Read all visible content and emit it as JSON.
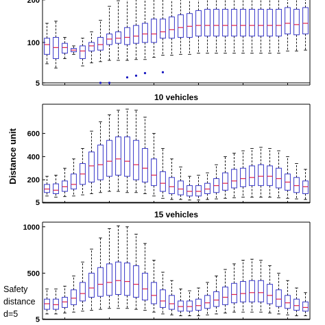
{
  "figure": {
    "ylabel": "Distance unit",
    "safety_note": [
      "Safety",
      "distance",
      "d=5"
    ]
  },
  "colors": {
    "box": "#3535c8",
    "median": "#e0204a",
    "outlier": "#1818c0",
    "axis": "#000000",
    "whisker": "#000000"
  },
  "chart_data": [
    {
      "type": "box",
      "title": "",
      "ylim": [
        0,
        232
      ],
      "yticks": [
        5,
        100,
        200
      ],
      "safety_line": 5,
      "n": 30,
      "boxes": [
        {
          "min": 50,
          "q1": 72,
          "med": 95,
          "q3": 110,
          "max": 145,
          "outliers": []
        },
        {
          "min": 40,
          "q1": 62,
          "med": 88,
          "q3": 112,
          "max": 150,
          "outliers": []
        },
        {
          "min": 62,
          "q1": 75,
          "med": 88,
          "q3": 98,
          "max": 112,
          "outliers": []
        },
        {
          "min": 72,
          "q1": 78,
          "med": 82,
          "q3": 86,
          "max": 92,
          "outliers": []
        },
        {
          "min": 45,
          "q1": 62,
          "med": 80,
          "q3": 92,
          "max": 110,
          "outliers": []
        },
        {
          "min": 52,
          "q1": 80,
          "med": 92,
          "q3": 100,
          "max": 125,
          "outliers": []
        },
        {
          "min": 55,
          "q1": 82,
          "med": 95,
          "q3": 112,
          "max": 152,
          "outliers": [
            5
          ]
        },
        {
          "min": 58,
          "q1": 95,
          "med": 108,
          "q3": 120,
          "max": 185,
          "outliers": [
            5
          ]
        },
        {
          "min": 58,
          "q1": 98,
          "med": 110,
          "q3": 125,
          "max": 198,
          "outliers": []
        },
        {
          "min": 58,
          "q1": 95,
          "med": 112,
          "q3": 135,
          "max": 205,
          "outliers": [
            18
          ]
        },
        {
          "min": 60,
          "q1": 98,
          "med": 115,
          "q3": 140,
          "max": 210,
          "outliers": [
            22
          ]
        },
        {
          "min": 60,
          "q1": 100,
          "med": 120,
          "q3": 145,
          "max": 212,
          "outliers": [
            28
          ]
        },
        {
          "min": 65,
          "q1": 100,
          "med": 120,
          "q3": 155,
          "max": 222,
          "outliers": [
            215
          ]
        },
        {
          "min": 70,
          "q1": 110,
          "med": 125,
          "q3": 155,
          "max": 225,
          "outliers": [
            30
          ]
        },
        {
          "min": 70,
          "q1": 110,
          "med": 130,
          "q3": 160,
          "max": 228,
          "outliers": []
        },
        {
          "min": 72,
          "q1": 112,
          "med": 135,
          "q3": 165,
          "max": 230,
          "outliers": []
        },
        {
          "min": 72,
          "q1": 112,
          "med": 138,
          "q3": 168,
          "max": 232,
          "outliers": []
        },
        {
          "min": 75,
          "q1": 115,
          "med": 140,
          "q3": 175,
          "max": 232,
          "outliers": []
        },
        {
          "min": 75,
          "q1": 115,
          "med": 140,
          "q3": 178,
          "max": 232,
          "outliers": []
        },
        {
          "min": 75,
          "q1": 115,
          "med": 140,
          "q3": 178,
          "max": 232,
          "outliers": []
        },
        {
          "min": 75,
          "q1": 115,
          "med": 140,
          "q3": 178,
          "max": 232,
          "outliers": []
        },
        {
          "min": 75,
          "q1": 115,
          "med": 140,
          "q3": 178,
          "max": 232,
          "outliers": []
        },
        {
          "min": 75,
          "q1": 115,
          "med": 140,
          "q3": 178,
          "max": 232,
          "outliers": []
        },
        {
          "min": 75,
          "q1": 115,
          "med": 140,
          "q3": 178,
          "max": 232,
          "outliers": []
        },
        {
          "min": 75,
          "q1": 115,
          "med": 140,
          "q3": 178,
          "max": 232,
          "outliers": []
        },
        {
          "min": 75,
          "q1": 115,
          "med": 140,
          "q3": 178,
          "max": 232,
          "outliers": []
        },
        {
          "min": 75,
          "q1": 115,
          "med": 140,
          "q3": 178,
          "max": 232,
          "outliers": []
        },
        {
          "min": 80,
          "q1": 120,
          "med": 145,
          "q3": 182,
          "max": 232,
          "outliers": []
        },
        {
          "min": 80,
          "q1": 118,
          "med": 142,
          "q3": 178,
          "max": 232,
          "outliers": []
        },
        {
          "min": 82,
          "q1": 120,
          "med": 145,
          "q3": 182,
          "max": 232,
          "outliers": []
        }
      ]
    },
    {
      "type": "box",
      "title": "10 vehicles",
      "ylim": [
        0,
        852
      ],
      "yticks": [
        5,
        200,
        400,
        600
      ],
      "safety_line": 5,
      "n": 30,
      "boxes": [
        {
          "min": 60,
          "q1": 90,
          "med": 120,
          "q3": 160,
          "max": 230,
          "outliers": []
        },
        {
          "min": 50,
          "q1": 80,
          "med": 110,
          "q3": 165,
          "max": 240,
          "outliers": []
        },
        {
          "min": 55,
          "q1": 100,
          "med": 140,
          "q3": 190,
          "max": 300,
          "outliers": []
        },
        {
          "min": 60,
          "q1": 120,
          "med": 160,
          "q3": 250,
          "max": 380,
          "outliers": []
        },
        {
          "min": 70,
          "q1": 160,
          "med": 250,
          "q3": 340,
          "max": 470,
          "outliers": []
        },
        {
          "min": 80,
          "q1": 180,
          "med": 320,
          "q3": 440,
          "max": 620,
          "outliers": []
        },
        {
          "min": 90,
          "q1": 200,
          "med": 330,
          "q3": 500,
          "max": 700,
          "outliers": []
        },
        {
          "min": 100,
          "q1": 230,
          "med": 360,
          "q3": 540,
          "max": 760,
          "outliers": []
        },
        {
          "min": 100,
          "q1": 240,
          "med": 380,
          "q3": 570,
          "max": 800,
          "outliers": []
        },
        {
          "min": 90,
          "q1": 230,
          "med": 360,
          "q3": 570,
          "max": 810,
          "outliers": []
        },
        {
          "min": 90,
          "q1": 200,
          "med": 330,
          "q3": 540,
          "max": 800,
          "outliers": []
        },
        {
          "min": 80,
          "q1": 180,
          "med": 300,
          "q3": 470,
          "max": 740,
          "outliers": []
        },
        {
          "min": 60,
          "q1": 150,
          "med": 240,
          "q3": 380,
          "max": 600,
          "outliers": []
        },
        {
          "min": 40,
          "q1": 100,
          "med": 170,
          "q3": 270,
          "max": 470,
          "outliers": []
        },
        {
          "min": 30,
          "q1": 80,
          "med": 140,
          "q3": 220,
          "max": 380,
          "outliers": []
        },
        {
          "min": 30,
          "q1": 70,
          "med": 120,
          "q3": 190,
          "max": 310,
          "outliers": []
        },
        {
          "min": 25,
          "q1": 60,
          "med": 100,
          "q3": 150,
          "max": 230,
          "outliers": []
        },
        {
          "min": 25,
          "q1": 60,
          "med": 100,
          "q3": 150,
          "max": 240,
          "outliers": []
        },
        {
          "min": 30,
          "q1": 80,
          "med": 120,
          "q3": 170,
          "max": 260,
          "outliers": []
        },
        {
          "min": 35,
          "q1": 90,
          "med": 150,
          "q3": 210,
          "max": 330,
          "outliers": []
        },
        {
          "min": 40,
          "q1": 110,
          "med": 170,
          "q3": 260,
          "max": 400,
          "outliers": []
        },
        {
          "min": 45,
          "q1": 130,
          "med": 190,
          "q3": 290,
          "max": 430,
          "outliers": []
        },
        {
          "min": 50,
          "q1": 140,
          "med": 210,
          "q3": 300,
          "max": 450,
          "outliers": []
        },
        {
          "min": 50,
          "q1": 150,
          "med": 220,
          "q3": 320,
          "max": 470,
          "outliers": []
        },
        {
          "min": 50,
          "q1": 150,
          "med": 230,
          "q3": 330,
          "max": 480,
          "outliers": []
        },
        {
          "min": 50,
          "q1": 150,
          "med": 230,
          "q3": 320,
          "max": 470,
          "outliers": []
        },
        {
          "min": 45,
          "q1": 130,
          "med": 210,
          "q3": 300,
          "max": 450,
          "outliers": []
        },
        {
          "min": 40,
          "q1": 110,
          "med": 180,
          "q3": 250,
          "max": 400,
          "outliers": []
        },
        {
          "min": 35,
          "q1": 90,
          "med": 150,
          "q3": 220,
          "max": 340,
          "outliers": []
        },
        {
          "min": 30,
          "q1": 80,
          "med": 140,
          "q3": 190,
          "max": 290,
          "outliers": []
        }
      ]
    },
    {
      "type": "box",
      "title": "15 vehicles",
      "ylim": [
        0,
        1050
      ],
      "yticks": [
        5,
        500,
        1000
      ],
      "safety_line": 5,
      "n": 30,
      "boxes": [
        {
          "min": 60,
          "q1": 110,
          "med": 170,
          "q3": 220,
          "max": 330,
          "outliers": []
        },
        {
          "min": 60,
          "q1": 110,
          "med": 160,
          "q3": 220,
          "max": 330,
          "outliers": []
        },
        {
          "min": 70,
          "q1": 130,
          "med": 190,
          "q3": 240,
          "max": 360,
          "outliers": []
        },
        {
          "min": 80,
          "q1": 160,
          "med": 230,
          "q3": 320,
          "max": 470,
          "outliers": []
        },
        {
          "min": 90,
          "q1": 200,
          "med": 280,
          "q3": 400,
          "max": 620,
          "outliers": []
        },
        {
          "min": 100,
          "q1": 240,
          "med": 340,
          "q3": 500,
          "max": 760,
          "outliers": []
        },
        {
          "min": 110,
          "q1": 250,
          "med": 380,
          "q3": 560,
          "max": 880,
          "outliers": []
        },
        {
          "min": 120,
          "q1": 260,
          "med": 400,
          "q3": 600,
          "max": 980,
          "outliers": []
        },
        {
          "min": 120,
          "q1": 270,
          "med": 420,
          "q3": 620,
          "max": 1010,
          "outliers": []
        },
        {
          "min": 120,
          "q1": 260,
          "med": 410,
          "q3": 610,
          "max": 1000,
          "outliers": []
        },
        {
          "min": 110,
          "q1": 240,
          "med": 380,
          "q3": 580,
          "max": 920,
          "outliers": []
        },
        {
          "min": 100,
          "q1": 210,
          "med": 330,
          "q3": 500,
          "max": 820,
          "outliers": []
        },
        {
          "min": 80,
          "q1": 170,
          "med": 260,
          "q3": 400,
          "max": 640,
          "outliers": []
        },
        {
          "min": 60,
          "q1": 130,
          "med": 200,
          "q3": 320,
          "max": 510,
          "outliers": []
        },
        {
          "min": 50,
          "q1": 110,
          "med": 170,
          "q3": 260,
          "max": 420,
          "outliers": []
        },
        {
          "min": 40,
          "q1": 90,
          "med": 140,
          "q3": 200,
          "max": 330,
          "outliers": []
        },
        {
          "min": 40,
          "q1": 90,
          "med": 140,
          "q3": 200,
          "max": 310,
          "outliers": []
        },
        {
          "min": 40,
          "q1": 100,
          "med": 150,
          "q3": 220,
          "max": 340,
          "outliers": []
        },
        {
          "min": 50,
          "q1": 120,
          "med": 180,
          "q3": 260,
          "max": 400,
          "outliers": []
        },
        {
          "min": 60,
          "q1": 140,
          "med": 210,
          "q3": 300,
          "max": 470,
          "outliers": []
        },
        {
          "min": 70,
          "q1": 160,
          "med": 240,
          "q3": 350,
          "max": 540,
          "outliers": []
        },
        {
          "min": 80,
          "q1": 180,
          "med": 270,
          "q3": 390,
          "max": 600,
          "outliers": []
        },
        {
          "min": 80,
          "q1": 190,
          "med": 280,
          "q3": 410,
          "max": 640,
          "outliers": []
        },
        {
          "min": 80,
          "q1": 190,
          "med": 290,
          "q3": 420,
          "max": 650,
          "outliers": []
        },
        {
          "min": 80,
          "q1": 190,
          "med": 290,
          "q3": 420,
          "max": 640,
          "outliers": []
        },
        {
          "min": 70,
          "q1": 170,
          "med": 260,
          "q3": 380,
          "max": 580,
          "outliers": []
        },
        {
          "min": 60,
          "q1": 140,
          "med": 220,
          "q3": 320,
          "max": 500,
          "outliers": []
        },
        {
          "min": 50,
          "q1": 120,
          "med": 180,
          "q3": 260,
          "max": 420,
          "outliers": []
        },
        {
          "min": 40,
          "q1": 100,
          "med": 150,
          "q3": 220,
          "max": 340,
          "outliers": []
        },
        {
          "min": 40,
          "q1": 90,
          "med": 130,
          "q3": 190,
          "max": 290,
          "outliers": []
        }
      ]
    }
  ]
}
